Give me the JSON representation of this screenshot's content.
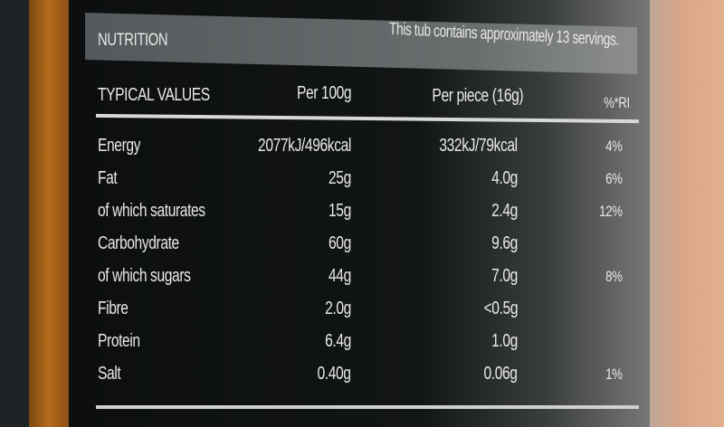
{
  "header": {
    "title": "NUTRITION",
    "servings_note": "This tub contains approximately 13 servings."
  },
  "columns": [
    "TYPICAL VALUES",
    "Per 100g",
    "Per piece (16g)",
    "%*RI"
  ],
  "rows": [
    {
      "name": "Energy",
      "per100": "2077kJ/496kcal",
      "perpiece": "332kJ/79kcal",
      "ri": "4%"
    },
    {
      "name": "Fat",
      "per100": "25g",
      "perpiece": "4.0g",
      "ri": "6%"
    },
    {
      "name": "of which saturates",
      "per100": "15g",
      "perpiece": "2.4g",
      "ri": "12%"
    },
    {
      "name": "Carbohydrate",
      "per100": "60g",
      "perpiece": "9.6g",
      "ri": ""
    },
    {
      "name": "of which sugars",
      "per100": "44g",
      "perpiece": "7.0g",
      "ri": "8%"
    },
    {
      "name": "Fibre",
      "per100": "2.0g",
      "perpiece": "<0.5g",
      "ri": ""
    },
    {
      "name": "Protein",
      "per100": "6.4g",
      "perpiece": "1.0g",
      "ri": ""
    },
    {
      "name": "Salt",
      "per100": "0.40g",
      "perpiece": "0.06g",
      "ri": "1%"
    }
  ],
  "colors": {
    "label_bg": "#0c0e0f",
    "header_band": "#5f6364",
    "text": "#e8e8e8",
    "package_orange": "#b86c1c"
  }
}
